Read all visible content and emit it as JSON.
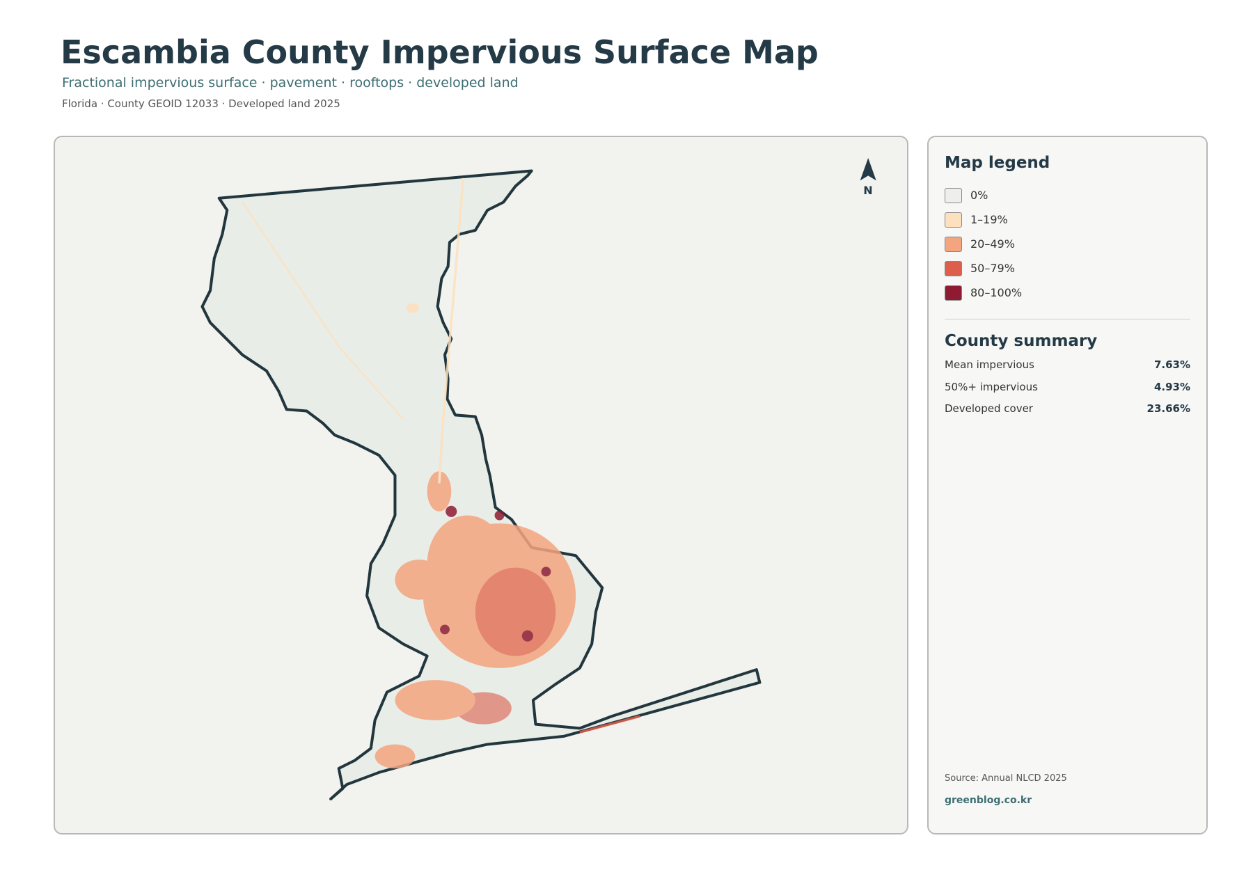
{
  "header": {
    "title": "Escambia County Impervious Surface Map",
    "subtitle": "Fractional impervious surface · pavement · rooftops · developed land",
    "meta": "Florida · County GEOID 12033 · Developed land 2025"
  },
  "map": {
    "north": "N"
  },
  "legend": {
    "title": "Map legend",
    "items": [
      {
        "label": "0%",
        "color": "#eeeeec"
      },
      {
        "label": "1–19%",
        "color": "#fde0bd"
      },
      {
        "label": "20–49%",
        "color": "#f4a57f"
      },
      {
        "label": "50–79%",
        "color": "#dc5e4b"
      },
      {
        "label": "80–100%",
        "color": "#8e1b32"
      }
    ]
  },
  "summary": {
    "title": "County summary",
    "rows": [
      {
        "label": "Mean impervious",
        "value": "7.63%"
      },
      {
        "label": "50%+ impervious",
        "value": "4.93%"
      },
      {
        "label": "Developed cover",
        "value": "23.66%"
      }
    ]
  },
  "footer": {
    "source": "Source: Annual NLCD 2025",
    "site": "greenblog.co.kr"
  }
}
